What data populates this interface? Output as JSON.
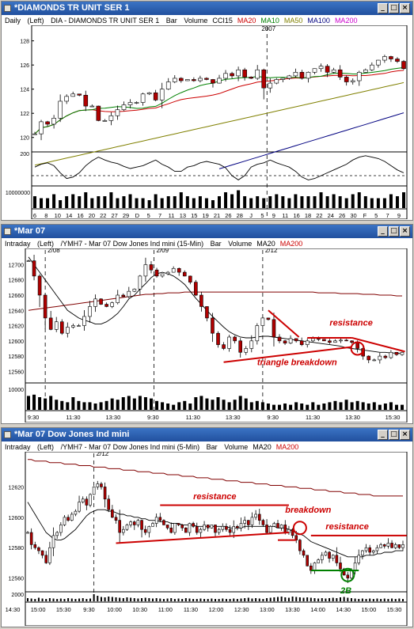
{
  "windows": [
    {
      "title": "*DIAMONDS TR UNIT SER 1",
      "period": "Daily",
      "axis_side": "(Left)",
      "symbol": "DIA - DIAMONDS TR UNIT SER 1",
      "chart_type": "Bar",
      "indicators": [
        {
          "label": "Volume",
          "color": "#000000"
        },
        {
          "label": "CCI15",
          "color": "#000000"
        },
        {
          "label": "MA20",
          "color": "#cc0000"
        },
        {
          "label": "MA10",
          "color": "#008000"
        },
        {
          "label": "MA50",
          "color": "#808000"
        },
        {
          "label": "MA100",
          "color": "#000080"
        },
        {
          "label": "MA200",
          "color": "#cc00cc"
        }
      ],
      "marker_label": "2007",
      "price_ticks": [
        "128",
        "126",
        "124",
        "122",
        "120"
      ],
      "cci_tick": "200",
      "volume_tick": "10000000",
      "x_ticks": [
        "6",
        "8",
        "10",
        "14",
        "16",
        "20",
        "22",
        "27",
        "29",
        "D",
        "5",
        "7",
        "11",
        "13",
        "15",
        "19",
        "21",
        "26",
        "28",
        "J",
        "5",
        "9",
        "11",
        "16",
        "18",
        "22",
        "24",
        "26",
        "30",
        "F",
        "5",
        "7",
        "9"
      ]
    },
    {
      "title": "*Mar 07",
      "period": "Intraday",
      "axis_side": "(Left)",
      "symbol": "/YMH7 - Mar 07 Dow Jones Ind mini (15-Min)",
      "chart_type": "Bar",
      "indicators": [
        {
          "label": "Volume",
          "color": "#000000"
        },
        {
          "label": "MA20",
          "color": "#000000"
        },
        {
          "label": "MA200",
          "color": "#cc0000"
        }
      ],
      "date_markers": [
        "2/08",
        "2/09",
        "2/12"
      ],
      "price_ticks": [
        "12700",
        "12680",
        "12660",
        "12640",
        "12620",
        "12600",
        "12580",
        "12560"
      ],
      "volume_tick": "10000",
      "x_ticks": [
        "9:30",
        "11:30",
        "13:30",
        "9:30",
        "11:30",
        "13:30",
        "9:30",
        "11:30",
        "13:30",
        "15:30"
      ],
      "annotations": [
        "resistance",
        "triangle breakdown"
      ]
    },
    {
      "title": "*Mar 07  Dow Jones Ind mini",
      "period": "Intraday",
      "axis_side": "(Left)",
      "symbol": "/YMH7 - Mar 07 Dow Jones Ind mini (5-Min)",
      "chart_type": "Bar",
      "indicators": [
        {
          "label": "Volume",
          "color": "#000000"
        },
        {
          "label": "MA20",
          "color": "#000000"
        },
        {
          "label": "MA200",
          "color": "#cc0000"
        }
      ],
      "date_markers": [
        "2/12"
      ],
      "price_ticks": [
        "12620",
        "12600",
        "12580",
        "12560"
      ],
      "volume_tick": "2000",
      "x_ticks": [
        "14:30",
        "15:00",
        "15:30",
        "9:30",
        "10:00",
        "10:30",
        "11:00",
        "11:30",
        "12:00",
        "12:30",
        "13:00",
        "13:30",
        "14:00",
        "14:30",
        "15:00",
        "15:30"
      ],
      "annotations": [
        "resistance",
        "breakdown",
        "resistance",
        "2B"
      ]
    }
  ],
  "window_buttons": {
    "minimize": "_",
    "maximize": "□",
    "close": "×"
  },
  "colors": {
    "titlebar": "#2a5caa",
    "annotation": "#cc0000",
    "annotation_green": "#008000"
  },
  "chart_data": [
    {
      "type": "candlestick",
      "title": "DIA - DIAMONDS TR UNIT SER 1 (Daily)",
      "ylim": [
        119,
        128.5
      ],
      "close": [
        120.3,
        121.3,
        121.1,
        121.6,
        123.0,
        123.4,
        123.6,
        123.5,
        122.6,
        122.6,
        121.4,
        121.4,
        121.8,
        122.3,
        122.7,
        122.9,
        122.9,
        123.6,
        123.7,
        123.1,
        124.0,
        124.6,
        124.9,
        124.7,
        124.8,
        124.7,
        124.9,
        124.8,
        124.5,
        124.9,
        125.3,
        125.1,
        125.6,
        125.0,
        124.9,
        125.6,
        124.1,
        124.5,
        124.8,
        124.9,
        125.1,
        125.4,
        124.9,
        125.4,
        125.7,
        125.9,
        125.4,
        125.6,
        125.0,
        124.6,
        124.7,
        125.4,
        125.6,
        126.0,
        126.4,
        126.7,
        126.5,
        126.3,
        125.7
      ],
      "cci": [
        20,
        60,
        80,
        40,
        -60,
        -140,
        -120,
        -60,
        40,
        110,
        160,
        120,
        90,
        70,
        30,
        0,
        20,
        40,
        80,
        120,
        60,
        20,
        -40,
        -40,
        20,
        40,
        80,
        100,
        80,
        60,
        10,
        -100,
        -160,
        -100,
        20,
        60,
        80,
        120,
        80,
        50,
        20,
        -40,
        -120,
        -160,
        -140,
        -100,
        -60,
        -20,
        20,
        60,
        120,
        160,
        180,
        160,
        140,
        100,
        40,
        -20,
        -60
      ],
      "volume": [
        0.6,
        0.5,
        0.5,
        0.7,
        0.4,
        0.6,
        0.7,
        0.6,
        0.8,
        0.5,
        0.6,
        0.6,
        0.8,
        0.5,
        0.6,
        0.7,
        0.5,
        0.5,
        0.4,
        0.7,
        0.5,
        0.6,
        0.6,
        0.8,
        0.6,
        0.5,
        0.6,
        0.5,
        0.4,
        0.6,
        0.8,
        0.7,
        0.9,
        0.6,
        0.5,
        0.6,
        0.5,
        0.6,
        0.7,
        0.6,
        0.5,
        0.7,
        0.6,
        0.6,
        0.6,
        0.8,
        0.6,
        0.7,
        0.6,
        0.5,
        0.7,
        0.8,
        0.6,
        0.5,
        0.5,
        0.5,
        0.7,
        0.6,
        0.8
      ]
    },
    {
      "type": "candlestick",
      "title": "/YMH7 - Mar 07 Dow Jones Ind mini (15-Min)",
      "ylim": [
        12550,
        12715
      ],
      "close": [
        12705,
        12685,
        12660,
        12630,
        12615,
        12625,
        12610,
        12618,
        12620,
        12620,
        12632,
        12645,
        12655,
        12648,
        12645,
        12650,
        12660,
        12658,
        12665,
        12668,
        12685,
        12700,
        12693,
        12685,
        12688,
        12690,
        12695,
        12690,
        12685,
        12677,
        12660,
        12645,
        12630,
        12610,
        12595,
        12590,
        12605,
        12600,
        12585,
        12590,
        12600,
        12620,
        12630,
        12628,
        12605,
        12600,
        12597,
        12603,
        12600,
        12595,
        12600,
        12603,
        12602,
        12600,
        12598,
        12600,
        12601,
        12600,
        12598,
        12590,
        12580,
        12575,
        12575,
        12580,
        12578,
        12585,
        12582,
        12585
      ],
      "ma20": [
        12710,
        12700,
        12690,
        12680,
        12670,
        12660,
        12650,
        12640,
        12635,
        12630,
        12627,
        12625,
        12622,
        12622,
        12625,
        12630,
        12636,
        12645,
        12655,
        12660,
        12668,
        12675,
        12683,
        12688,
        12690,
        12688,
        12685,
        12680,
        12674,
        12665,
        12656,
        12648,
        12640,
        12632,
        12625,
        12618,
        12612,
        12608,
        12605,
        12604,
        12604,
        12605,
        12606,
        12606,
        12605,
        12604,
        12603,
        12602,
        12601,
        12600,
        12599,
        12598,
        12597,
        12596,
        12595,
        12594,
        12593,
        12591,
        12590,
        12589,
        12588,
        12587,
        12586,
        12585,
        12585,
        12584,
        12584,
        12583
      ],
      "ma200": [
        12640,
        12641,
        12642,
        12643,
        12644,
        12645,
        12646,
        12647,
        12648,
        12649,
        12650,
        12651,
        12652,
        12653,
        12654,
        12655,
        12656,
        12657,
        12658,
        12659,
        12660,
        12661,
        12661,
        12662,
        12662,
        12663,
        12663,
        12663,
        12664,
        12664,
        12664,
        12664,
        12664,
        12664,
        12664,
        12664,
        12664,
        12664,
        12664,
        12664,
        12664,
        12664,
        12664,
        12664,
        12664,
        12664,
        12664,
        12664,
        12664,
        12664,
        12664,
        12664,
        12663,
        12663,
        12663,
        12663,
        12662,
        12662,
        12662,
        12662,
        12661,
        12661,
        12661,
        12660,
        12660,
        12660,
        12659,
        12659
      ],
      "volume": [
        0.55,
        0.6,
        0.5,
        0.45,
        0.55,
        0.4,
        0.35,
        0.3,
        0.5,
        0.35,
        0.3,
        0.3,
        0.25,
        0.3,
        0.35,
        0.45,
        0.4,
        0.5,
        0.55,
        0.45,
        0.55,
        0.5,
        0.45,
        0.35,
        0.3,
        0.25,
        0.2,
        0.3,
        0.35,
        0.25,
        0.5,
        0.55,
        0.45,
        0.4,
        0.5,
        0.4,
        0.3,
        0.4,
        0.55,
        0.45,
        0.3,
        0.35,
        0.3,
        0.25,
        0.2,
        0.2,
        0.25,
        0.2,
        0.3,
        0.25,
        0.2,
        0.3,
        0.2,
        0.25,
        0.3,
        0.35,
        0.3,
        0.4,
        0.3,
        0.35,
        0.3,
        0.25,
        0.3,
        0.2,
        0.25,
        0.3,
        0.2,
        0.2
      ]
    },
    {
      "type": "candlestick",
      "title": "/YMH7 - Mar 07 Dow Jones Ind mini (5-Min)",
      "ylim": [
        12552,
        12640
      ],
      "close": [
        12590,
        12582,
        12580,
        12578,
        12575,
        12570,
        12580,
        12588,
        12590,
        12595,
        12600,
        12598,
        12602,
        12604,
        12610,
        12612,
        12608,
        12615,
        12620,
        12622,
        12620,
        12612,
        12605,
        12600,
        12598,
        12590,
        12592,
        12595,
        12597,
        12595,
        12598,
        12592,
        12590,
        12594,
        12596,
        12600,
        12598,
        12595,
        12593,
        12590,
        12596,
        12595,
        12593,
        12590,
        12596,
        12594,
        12590,
        12592,
        12595,
        12593,
        12595,
        12590,
        12592,
        12594,
        12592,
        12590,
        12594,
        12593,
        12596,
        12598,
        12595,
        12600,
        12602,
        12598,
        12595,
        12590,
        12594,
        12596,
        12593,
        12595,
        12590,
        12592,
        12588,
        12585,
        12578,
        12575,
        12568,
        12565,
        12570,
        12572,
        12575,
        12577,
        12573,
        12575,
        12570,
        12566,
        12562,
        12560,
        12565,
        12570,
        12575,
        12578,
        12580,
        12577,
        12578,
        12580,
        12582,
        12581,
        12583,
        12580,
        12582,
        12580,
        12582
      ],
      "ma20": [
        12610,
        12606,
        12602,
        12598,
        12594,
        12590,
        12588,
        12586,
        12585,
        12585,
        12586,
        12588,
        12590,
        12592,
        12595,
        12598,
        12601,
        12603,
        12604,
        12605,
        12605,
        12605,
        12604,
        12604,
        12603,
        12602,
        12602,
        12601,
        12601,
        12600,
        12600,
        12599,
        12599,
        12598,
        12598,
        12598,
        12597,
        12597,
        12597,
        12596,
        12596,
        12596,
        12595,
        12595,
        12595,
        12595,
        12594,
        12594,
        12594,
        12594,
        12594,
        12594,
        12594,
        12594,
        12594,
        12593,
        12593,
        12593,
        12593,
        12594,
        12594,
        12594,
        12594,
        12594,
        12594,
        12594,
        12594,
        12594,
        12593,
        12593,
        12593,
        12592,
        12591,
        12590,
        12589,
        12588,
        12586,
        12584,
        12583,
        12582,
        12581,
        12580,
        12579,
        12578,
        12577,
        12576,
        12575,
        12574,
        12574,
        12574,
        12574,
        12574,
        12575,
        12575,
        12575,
        12576,
        12576,
        12577,
        12577,
        12577,
        12578,
        12578,
        12578
      ],
      "ma200": [
        12638,
        12638,
        12637,
        12637,
        12637,
        12637,
        12636,
        12636,
        12636,
        12636,
        12635,
        12635,
        12635,
        12635,
        12634,
        12634,
        12634,
        12634,
        12633,
        12633,
        12633,
        12633,
        12632,
        12632,
        12632,
        12632,
        12631,
        12631,
        12631,
        12631,
        12630,
        12630,
        12630,
        12630,
        12629,
        12629,
        12629,
        12629,
        12628,
        12628,
        12628,
        12628,
        12627,
        12627,
        12627,
        12627,
        12626,
        12626,
        12626,
        12626,
        12625,
        12625,
        12625,
        12625,
        12624,
        12624,
        12624,
        12624,
        12623,
        12623,
        12623,
        12623,
        12622,
        12622,
        12622,
        12622,
        12621,
        12621,
        12621,
        12621,
        12620,
        12620,
        12620,
        12620,
        12619,
        12619,
        12619,
        12619,
        12618,
        12618,
        12618,
        12618,
        12617,
        12617,
        12617,
        12617,
        12616,
        12616,
        12616,
        12616,
        12615,
        12615,
        12615,
        12615,
        12614,
        12614,
        12614,
        12614,
        12614,
        12614,
        12614,
        12614,
        12614
      ],
      "volume": [
        0.4,
        0.35,
        0.3,
        0.45,
        0.35,
        0.3,
        0.4,
        0.35,
        0.3,
        0.35,
        0.3,
        0.4,
        0.35,
        0.3,
        0.35,
        0.4,
        0.3,
        0.35,
        0.9,
        0.7,
        0.55,
        0.5,
        0.6,
        0.55,
        0.5,
        0.45,
        0.4,
        0.5,
        0.45,
        0.4,
        0.35,
        0.4,
        0.45,
        0.4,
        0.35,
        0.4,
        0.35,
        0.3,
        0.35,
        0.4,
        0.3,
        0.35,
        0.3,
        0.4,
        0.35,
        0.3,
        0.3,
        0.35,
        0.3,
        0.3,
        0.35,
        0.3,
        0.3,
        0.35,
        0.3,
        0.3,
        0.35,
        0.3,
        0.35,
        0.4,
        0.45,
        0.35,
        0.4,
        0.35,
        0.3,
        0.4,
        0.45,
        0.5,
        0.55,
        0.6,
        0.5,
        0.45,
        0.6,
        0.55,
        0.5,
        0.45,
        0.5,
        0.45,
        0.4,
        0.35,
        0.4,
        0.35,
        0.4,
        0.45,
        0.4,
        0.5,
        0.55,
        0.45,
        0.4,
        0.35,
        0.3,
        0.35,
        0.3,
        0.35,
        0.3,
        0.35,
        0.3,
        0.35,
        0.3,
        0.35,
        0.3,
        0.35,
        0.3
      ]
    }
  ]
}
